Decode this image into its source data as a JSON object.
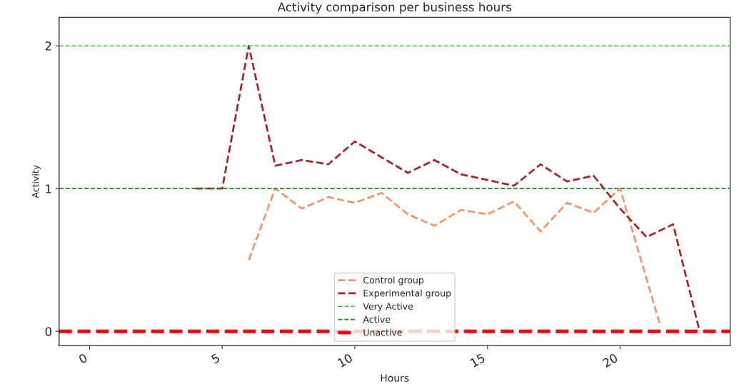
{
  "chart_data": {
    "type": "line",
    "title": "Activity comparison per business hours",
    "xlabel": "Hours",
    "ylabel": "Activity",
    "series": [
      {
        "name": "Control group",
        "color": "#f4956e",
        "x": [
          6,
          7,
          8,
          9,
          10,
          11,
          12,
          13,
          14,
          15,
          16,
          17,
          18,
          19,
          20,
          21.5
        ],
        "values": [
          0.5,
          1.0,
          0.86,
          0.94,
          0.9,
          0.97,
          0.82,
          0.74,
          0.85,
          0.82,
          0.91,
          0.7,
          0.9,
          0.83,
          1.0,
          0.05
        ]
      },
      {
        "name": "Experimental group",
        "color": "#a8262b",
        "x": [
          4,
          5,
          6,
          7,
          8,
          9,
          10,
          11,
          12,
          13,
          14,
          15,
          16,
          17,
          18,
          19,
          20,
          21,
          22,
          23
        ],
        "values": [
          1.0,
          1.0,
          2.0,
          1.16,
          1.2,
          1.17,
          1.33,
          1.22,
          1.11,
          1.2,
          1.1,
          1.06,
          1.02,
          1.17,
          1.05,
          1.09,
          0.86,
          0.66,
          0.75,
          0.0
        ]
      }
    ],
    "ref_lines": [
      {
        "axis": "y",
        "value": 2,
        "label": "Very Active",
        "color": "#3cc83c",
        "line_style": "dashed"
      },
      {
        "axis": "y",
        "value": 1,
        "label": "Active",
        "color": "#1f8a1f",
        "line_style": "dashed"
      },
      {
        "axis": "y",
        "value": 0,
        "label": "Unactive",
        "color": "#ff0000",
        "line_style": "dashed"
      }
    ],
    "line_style": "dashed",
    "marker": "none",
    "grid": false,
    "legend": "bottom",
    "xlim": [
      -1.15,
      24.15
    ],
    "xticks": [
      0,
      5,
      10,
      15,
      20
    ],
    "ylim": [
      -0.1,
      2.2
    ],
    "yticks": [
      0,
      1,
      2
    ]
  }
}
